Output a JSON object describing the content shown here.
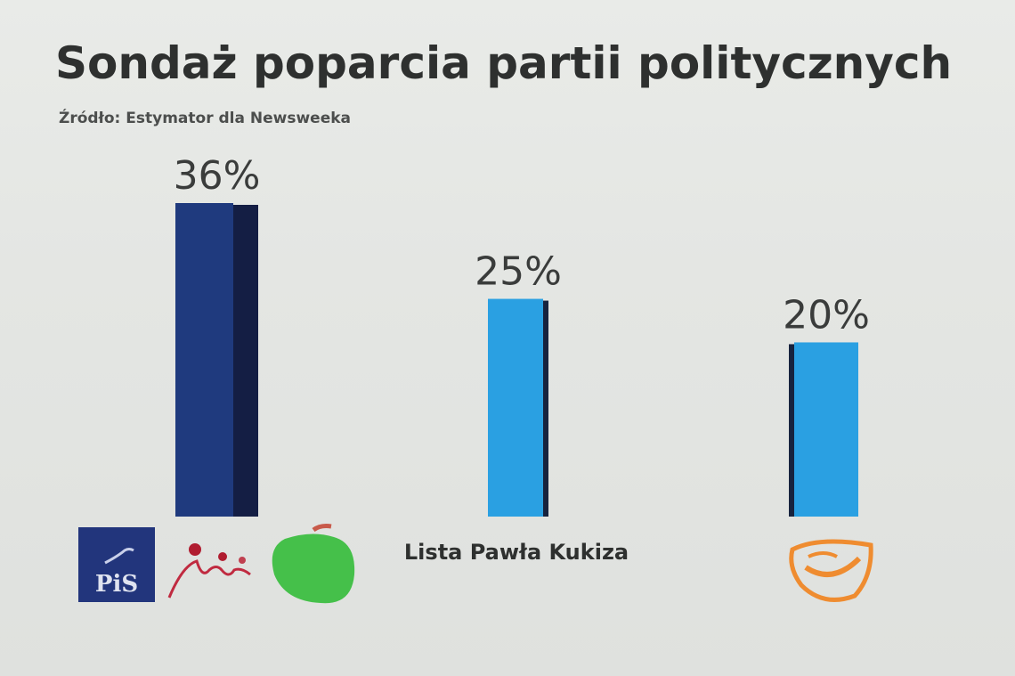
{
  "chart_data": {
    "type": "bar",
    "title": "Sondaż poparcia partii politycznych",
    "subtitle": "Źródło: Estymator dla Newsweeka",
    "categories": [
      "PiS / Solidarna Polska / Polska Razem",
      "Lista Pawła Kukiza",
      "PO"
    ],
    "category_labels": [
      "",
      "Lista Pawła Kukiza",
      ""
    ],
    "category_logos": [
      [
        "pis-logo",
        "solidarna-polska-logo",
        "polska-razem-apple-logo"
      ],
      [],
      [
        "po-logo"
      ]
    ],
    "values": [
      36,
      25,
      20
    ],
    "data_labels": [
      "36%",
      "25%",
      "20%"
    ],
    "unit": "%",
    "ylim": [
      0,
      36
    ],
    "grid": false,
    "colors": [
      "#1f3a7e",
      "#2aa0e2",
      "#2aa0e2"
    ],
    "side_colors": [
      "#141e44",
      "#17233e",
      "#17233e"
    ],
    "logo_texts": {
      "pis": "PiS"
    }
  }
}
